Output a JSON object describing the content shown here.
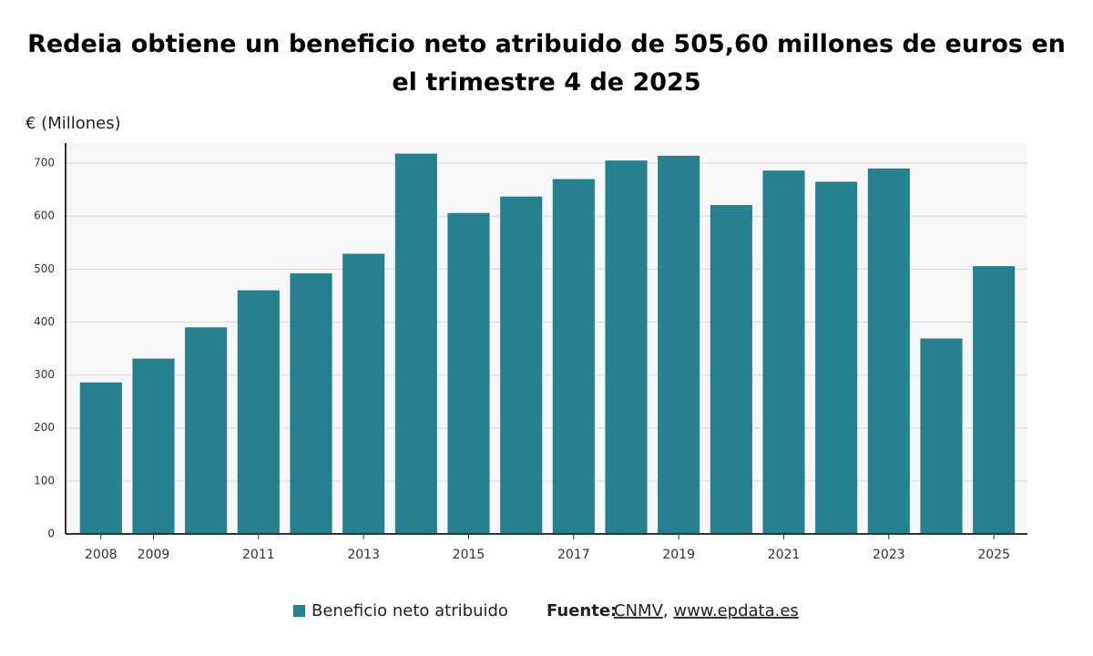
{
  "chart_data": {
    "type": "bar",
    "title": "Redeia obtiene un beneficio neto atribuido de 505,60 millones de euros en el trimestre 4 de 2025",
    "y_label": "€ (Millones)",
    "categories": [
      "2008",
      "2009",
      null,
      "2011",
      null,
      "2013",
      null,
      "2015",
      null,
      "2017",
      null,
      "2019",
      null,
      "2021",
      null,
      "2023",
      null,
      "2025"
    ],
    "series": [
      {
        "name": "Beneficio neto atribuido",
        "color": "#26808f",
        "values": [
          286,
          331,
          390,
          460,
          492,
          529,
          718,
          606,
          637,
          670,
          705,
          714,
          621,
          686,
          665,
          690,
          369,
          505.6
        ]
      }
    ],
    "ylim": [
      0,
      738
    ],
    "yticks": [
      0,
      100,
      200,
      300,
      400,
      500,
      600,
      700
    ],
    "grid": true,
    "source_label": "Fuente:",
    "source_links": [
      "CNMV",
      "www.epdata.es"
    ],
    "source_separator": ","
  }
}
